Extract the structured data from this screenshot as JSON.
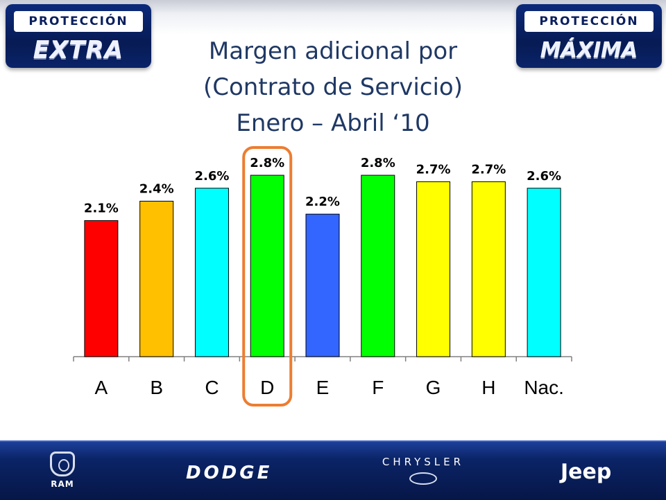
{
  "header": {
    "badge_left": {
      "top_text": "PROTECCIÓN",
      "bottom_text": "EXTRA"
    },
    "badge_right": {
      "top_text": "PROTECCIÓN",
      "bottom_text": "MÁXIMA"
    },
    "title_lines": [
      "Margen adicional por",
      "(Contrato de Servicio)",
      "Enero – Abril ‘10"
    ]
  },
  "footer": {
    "brands": {
      "ram": "RAM",
      "dodge": "DODGE",
      "chrysler": "CHRYSLER",
      "jeep": "Jeep"
    }
  },
  "chart_data": {
    "type": "bar",
    "title": "",
    "xlabel": "",
    "ylabel": "",
    "categories": [
      "A",
      "B",
      "C",
      "D",
      "E",
      "F",
      "G",
      "H",
      "Nac."
    ],
    "values": [
      2.1,
      2.4,
      2.6,
      2.8,
      2.2,
      2.8,
      2.7,
      2.7,
      2.6
    ],
    "data_labels": [
      "2.1%",
      "2.4%",
      "2.6%",
      "2.8%",
      "2.2%",
      "2.8%",
      "2.7%",
      "2.7%",
      "2.6%"
    ],
    "colors": [
      "#ff0000",
      "#ffc000",
      "#00ffff",
      "#00ff00",
      "#3366ff",
      "#00ff00",
      "#ffff00",
      "#ffff00",
      "#00ffff"
    ],
    "ylim": [
      0,
      3.1
    ],
    "grid": false,
    "legend": "none",
    "highlight": {
      "category": "D",
      "color": "#ed7d31"
    }
  },
  "colors": {
    "title": "#1f3864",
    "badge_blue": "#0b2a7a",
    "footer_blue": "#0b2466",
    "highlight": "#ed7d31"
  }
}
